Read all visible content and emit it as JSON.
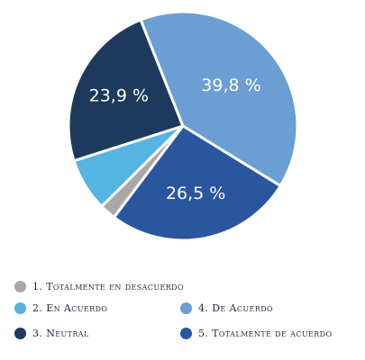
{
  "chart_data": {
    "type": "pie",
    "categories": [
      "1. Totalmente en desacuerdo",
      "2. En Acuerdo",
      "3. Neutral",
      "4. De Acuerdo",
      "5. Totalmente de acuerdo"
    ],
    "values": [
      2.3,
      7.5,
      23.9,
      39.8,
      26.5
    ],
    "slice_labels": [
      "",
      "",
      "23,9 %",
      "39,8 %",
      "26,5 %"
    ],
    "colors": [
      "#a8a8a8",
      "#55b4e1",
      "#1d3a5c",
      "#6b9ed2",
      "#2a56a0"
    ],
    "legend_placement": "bottom"
  }
}
